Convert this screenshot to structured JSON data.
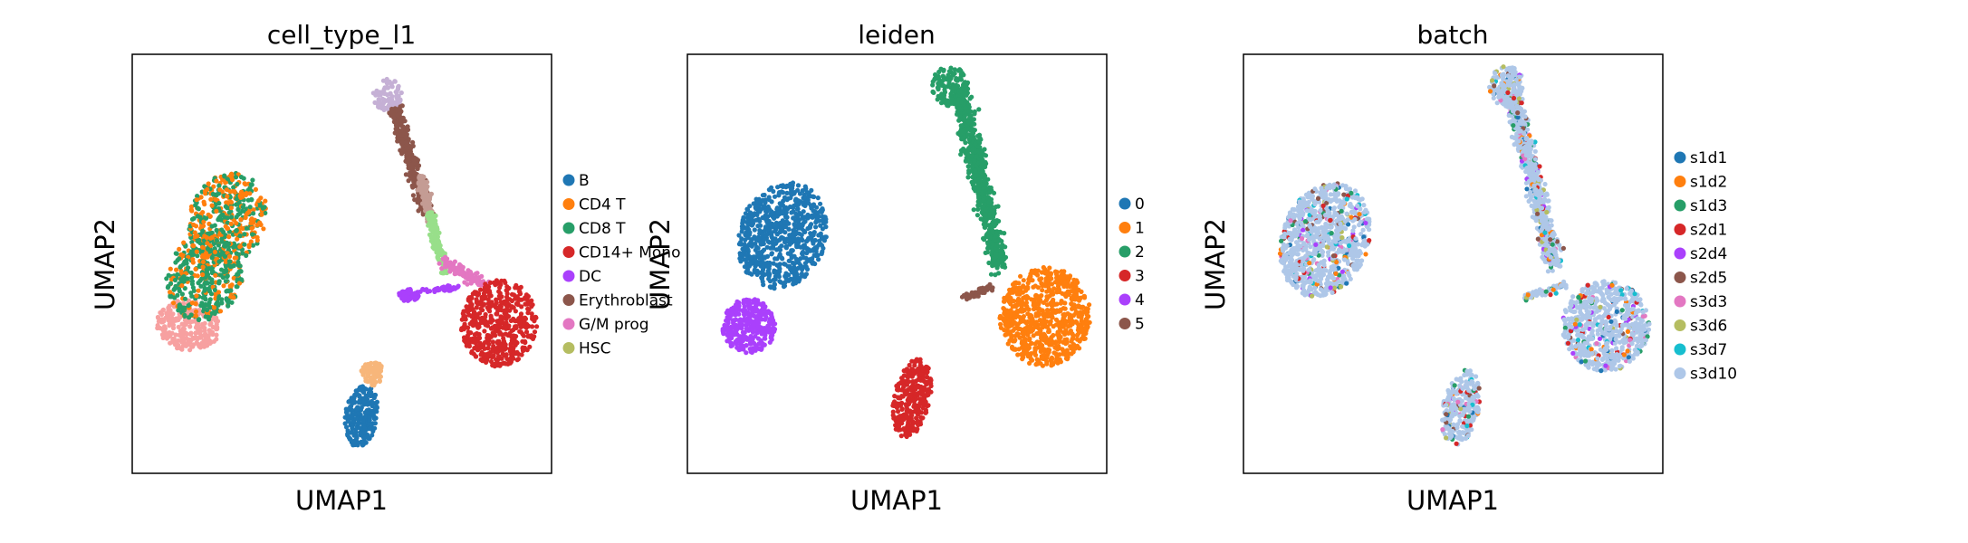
{
  "figure": {
    "panels": [
      {
        "title": "cell_type_l1",
        "xlabel": "UMAP1",
        "ylabel": "UMAP2",
        "legend": [
          {
            "label": "B",
            "color": "#1f77b4"
          },
          {
            "label": "CD4 T",
            "color": "#ff7f0e"
          },
          {
            "label": "CD8 T",
            "color": "#279e68"
          },
          {
            "label": "CD14+ Mono",
            "color": "#d62728"
          },
          {
            "label": "DC",
            "color": "#aa40fc"
          },
          {
            "label": "Erythroblast",
            "color": "#8c564b"
          },
          {
            "label": "G/M prog",
            "color": "#e377c2"
          },
          {
            "label": "HSC",
            "color": "#b5bd61"
          }
        ]
      },
      {
        "title": "leiden",
        "xlabel": "UMAP1",
        "ylabel": "UMAP2",
        "legend": [
          {
            "label": "0",
            "color": "#1f77b4"
          },
          {
            "label": "1",
            "color": "#ff7f0e"
          },
          {
            "label": "2",
            "color": "#279e68"
          },
          {
            "label": "3",
            "color": "#d62728"
          },
          {
            "label": "4",
            "color": "#aa40fc"
          },
          {
            "label": "5",
            "color": "#8c564b"
          }
        ]
      },
      {
        "title": "batch",
        "xlabel": "UMAP1",
        "ylabel": "UMAP2",
        "legend": [
          {
            "label": "s1d1",
            "color": "#1f77b4"
          },
          {
            "label": "s1d2",
            "color": "#ff7f0e"
          },
          {
            "label": "s1d3",
            "color": "#279e68"
          },
          {
            "label": "s2d1",
            "color": "#d62728"
          },
          {
            "label": "s2d4",
            "color": "#aa40fc"
          },
          {
            "label": "s2d5",
            "color": "#8c564b"
          },
          {
            "label": "s3d3",
            "color": "#e377c2"
          },
          {
            "label": "s3d6",
            "color": "#b5bd61"
          },
          {
            "label": "s3d7",
            "color": "#17becf"
          },
          {
            "label": "s3d10",
            "color": "#aec7e8"
          }
        ]
      }
    ]
  },
  "chart_data": [
    {
      "type": "scatter",
      "title": "cell_type_l1",
      "xlabel": "UMAP1",
      "ylabel": "UMAP2",
      "ticks": "none",
      "grid": false,
      "legend_position": "right",
      "extra_colors": [
        "#f7a0a0",
        "#c5b0d5",
        "#c49c94",
        "#98df8a",
        "#f7b67a"
      ],
      "series": [
        {
          "name": "B",
          "color": "#1f77b4"
        },
        {
          "name": "CD4 T",
          "color": "#ff7f0e"
        },
        {
          "name": "CD8 T",
          "color": "#279e68"
        },
        {
          "name": "CD14+ Mono",
          "color": "#d62728"
        },
        {
          "name": "DC",
          "color": "#aa40fc"
        },
        {
          "name": "Erythroblast",
          "color": "#8c564b"
        },
        {
          "name": "G/M prog",
          "color": "#e377c2"
        },
        {
          "name": "HSC",
          "color": "#b5bd61"
        }
      ]
    },
    {
      "type": "scatter",
      "title": "leiden",
      "xlabel": "UMAP1",
      "ylabel": "UMAP2",
      "ticks": "none",
      "grid": false,
      "legend_position": "right",
      "series": [
        {
          "name": "0",
          "color": "#1f77b4"
        },
        {
          "name": "1",
          "color": "#ff7f0e"
        },
        {
          "name": "2",
          "color": "#279e68"
        },
        {
          "name": "3",
          "color": "#d62728"
        },
        {
          "name": "4",
          "color": "#aa40fc"
        },
        {
          "name": "5",
          "color": "#8c564b"
        }
      ]
    },
    {
      "type": "scatter",
      "title": "batch",
      "xlabel": "UMAP1",
      "ylabel": "UMAP2",
      "ticks": "none",
      "grid": false,
      "legend_position": "right",
      "series": [
        {
          "name": "s1d1",
          "color": "#1f77b4"
        },
        {
          "name": "s1d2",
          "color": "#ff7f0e"
        },
        {
          "name": "s1d3",
          "color": "#279e68"
        },
        {
          "name": "s2d1",
          "color": "#d62728"
        },
        {
          "name": "s2d4",
          "color": "#aa40fc"
        },
        {
          "name": "s2d5",
          "color": "#8c564b"
        },
        {
          "name": "s3d3",
          "color": "#e377c2"
        },
        {
          "name": "s3d6",
          "color": "#b5bd61"
        },
        {
          "name": "s3d7",
          "color": "#17becf"
        },
        {
          "name": "s3d10",
          "color": "#aec7e8"
        }
      ]
    }
  ]
}
